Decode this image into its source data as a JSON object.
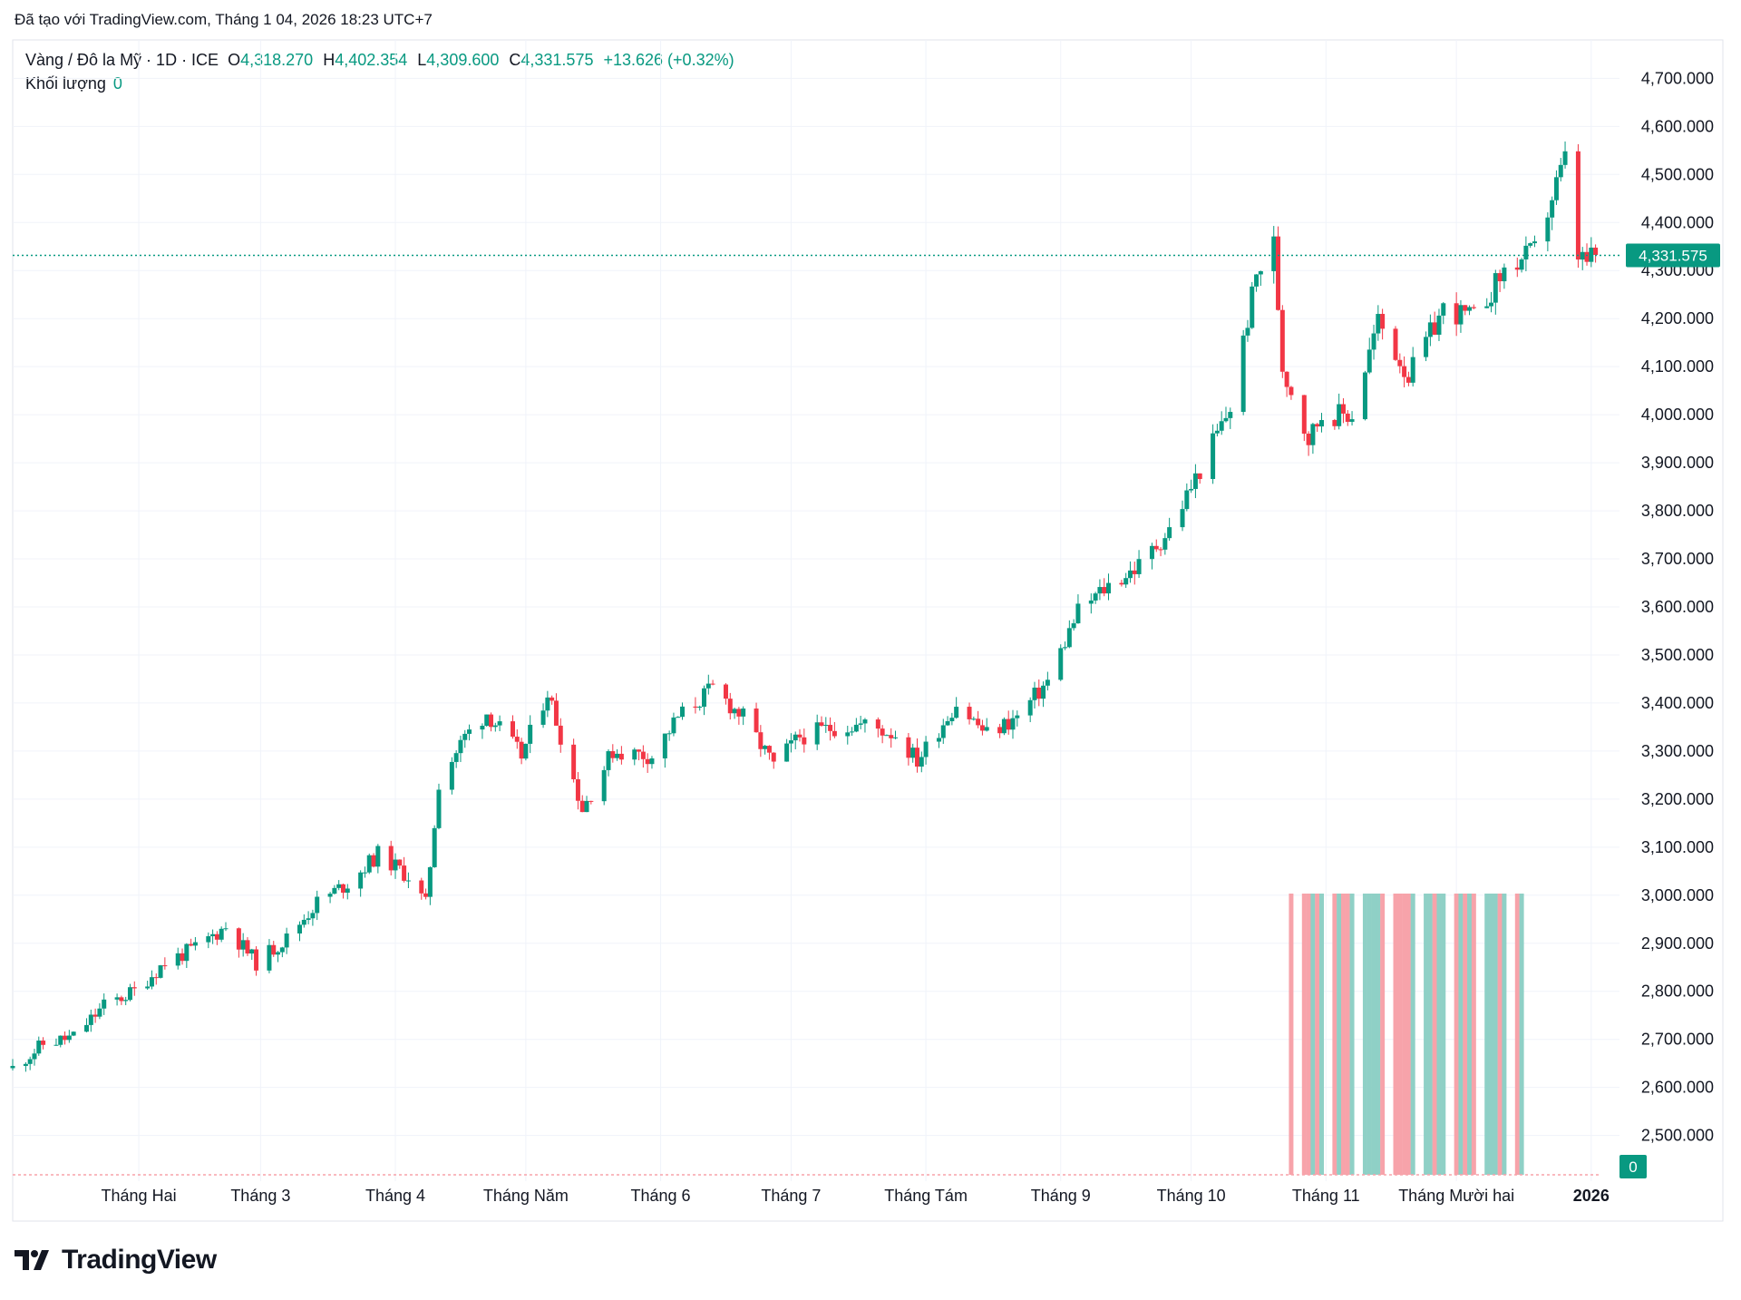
{
  "header": {
    "created_by": "Đã tạo với TradingView.com, Tháng 1 04, 2026 18:23 UTC+7"
  },
  "legend": {
    "symbol": "Vàng / Đô la Mỹ · 1D · ICE",
    "open_key": "O",
    "open": "4,318.270",
    "high_key": "H",
    "high": "4,402.354",
    "low_key": "L",
    "low": "4,309.600",
    "close_key": "C",
    "close": "4,331.575",
    "change": "+13.626 (+0.32%)",
    "volume_label": "Khối lượng",
    "volume_value": "0"
  },
  "branding": {
    "logo_text": "TradingView"
  },
  "colors": {
    "up": "#089981",
    "down": "#f23645",
    "grid": "#f0f3fa",
    "price_line": "#089981"
  },
  "chart_data": {
    "type": "candlestick",
    "title": "Vàng / Đô la Mỹ · 1D · ICE",
    "y_axis": {
      "side": "right",
      "range": [
        2420,
        4780
      ],
      "ticks": [
        2500,
        2600,
        2700,
        2800,
        2900,
        3000,
        3100,
        3200,
        3300,
        3400,
        3500,
        3600,
        3700,
        3800,
        3900,
        4000,
        4100,
        4200,
        4300,
        4400,
        4500,
        4600,
        4700
      ],
      "tick_labels": [
        "2,500.000",
        "2,600.000",
        "2,700.000",
        "2,800.000",
        "2,900.000",
        "3,000.000",
        "3,100.000",
        "3,200.000",
        "3,300.000",
        "3,400.000",
        "3,500.000",
        "3,600.000",
        "3,700.000",
        "3,800.000",
        "3,900.000",
        "4,000.000",
        "4,100.000",
        "4,200.000",
        "4,300.000",
        "4,400.000",
        "4,500.000",
        "4,600.000",
        "4,700.000"
      ]
    },
    "x_axis": {
      "range": [
        "2025-01-03",
        "2026-01-05"
      ],
      "ticks": [
        {
          "date": "2025-02-01",
          "label": "Tháng Hai"
        },
        {
          "date": "2025-03-01",
          "label": "Tháng 3"
        },
        {
          "date": "2025-04-01",
          "label": "Tháng 4"
        },
        {
          "date": "2025-05-01",
          "label": "Tháng Năm"
        },
        {
          "date": "2025-06-01",
          "label": "Tháng 6"
        },
        {
          "date": "2025-07-01",
          "label": "Tháng 7"
        },
        {
          "date": "2025-08-01",
          "label": "Tháng Tám"
        },
        {
          "date": "2025-09-01",
          "label": "Tháng 9"
        },
        {
          "date": "2025-10-01",
          "label": "Tháng 10"
        },
        {
          "date": "2025-11-01",
          "label": "Tháng 11"
        },
        {
          "date": "2025-12-01",
          "label": "Tháng Mười hai"
        },
        {
          "date": "2026-01-01",
          "label": "2026",
          "bold": true
        }
      ]
    },
    "grid": true,
    "last_price": 4331.575,
    "last_price_label": "4,331.575",
    "volume_last_label": "0",
    "closes": [
      {
        "date": "2025-01-03",
        "close": 2640
      },
      {
        "date": "2025-01-10",
        "close": 2690
      },
      {
        "date": "2025-01-17",
        "close": 2705
      },
      {
        "date": "2025-01-24",
        "close": 2770
      },
      {
        "date": "2025-01-31",
        "close": 2800
      },
      {
        "date": "2025-02-07",
        "close": 2860
      },
      {
        "date": "2025-02-14",
        "close": 2890
      },
      {
        "date": "2025-02-21",
        "close": 2935
      },
      {
        "date": "2025-02-28",
        "close": 2860
      },
      {
        "date": "2025-03-07",
        "close": 2910
      },
      {
        "date": "2025-03-14",
        "close": 2985
      },
      {
        "date": "2025-03-21",
        "close": 3025
      },
      {
        "date": "2025-03-28",
        "close": 3085
      },
      {
        "date": "2025-04-04",
        "close": 3040
      },
      {
        "date": "2025-04-08",
        "close": 2980
      },
      {
        "date": "2025-04-11",
        "close": 3235
      },
      {
        "date": "2025-04-17",
        "close": 3330
      },
      {
        "date": "2025-04-22",
        "close": 3380
      },
      {
        "date": "2025-04-30",
        "close": 3290
      },
      {
        "date": "2025-05-06",
        "close": 3425
      },
      {
        "date": "2025-05-14",
        "close": 3180
      },
      {
        "date": "2025-05-21",
        "close": 3300
      },
      {
        "date": "2025-05-30",
        "close": 3290
      },
      {
        "date": "2025-06-05",
        "close": 3370
      },
      {
        "date": "2025-06-13",
        "close": 3430
      },
      {
        "date": "2025-06-20",
        "close": 3370
      },
      {
        "date": "2025-06-27",
        "close": 3270
      },
      {
        "date": "2025-07-03",
        "close": 3330
      },
      {
        "date": "2025-07-11",
        "close": 3350
      },
      {
        "date": "2025-07-18",
        "close": 3355
      },
      {
        "date": "2025-07-25",
        "close": 3335
      },
      {
        "date": "2025-07-30",
        "close": 3280
      },
      {
        "date": "2025-08-08",
        "close": 3400
      },
      {
        "date": "2025-08-15",
        "close": 3335
      },
      {
        "date": "2025-08-22",
        "close": 3370
      },
      {
        "date": "2025-08-29",
        "close": 3445
      },
      {
        "date": "2025-09-05",
        "close": 3590
      },
      {
        "date": "2025-09-12",
        "close": 3645
      },
      {
        "date": "2025-09-19",
        "close": 3685
      },
      {
        "date": "2025-09-26",
        "close": 3760
      },
      {
        "date": "2025-10-03",
        "close": 3885
      },
      {
        "date": "2025-10-10",
        "close": 4015
      },
      {
        "date": "2025-10-16",
        "close": 4290
      },
      {
        "date": "2025-10-20",
        "close": 4355
      },
      {
        "date": "2025-10-22",
        "close": 4100
      },
      {
        "date": "2025-10-28",
        "close": 3950
      },
      {
        "date": "2025-10-31",
        "close": 4000
      },
      {
        "date": "2025-11-07",
        "close": 4000
      },
      {
        "date": "2025-11-13",
        "close": 4195
      },
      {
        "date": "2025-11-20",
        "close": 4080
      },
      {
        "date": "2025-11-28",
        "close": 4220
      },
      {
        "date": "2025-12-05",
        "close": 4200
      },
      {
        "date": "2025-12-12",
        "close": 4300
      },
      {
        "date": "2025-12-19",
        "close": 4340
      },
      {
        "date": "2025-12-24",
        "close": 4480
      },
      {
        "date": "2025-12-26",
        "close": 4530
      },
      {
        "date": "2025-12-29",
        "close": 4330
      },
      {
        "date": "2025-12-31",
        "close": 4318
      },
      {
        "date": "2026-01-02",
        "close": 4331.575
      }
    ]
  }
}
